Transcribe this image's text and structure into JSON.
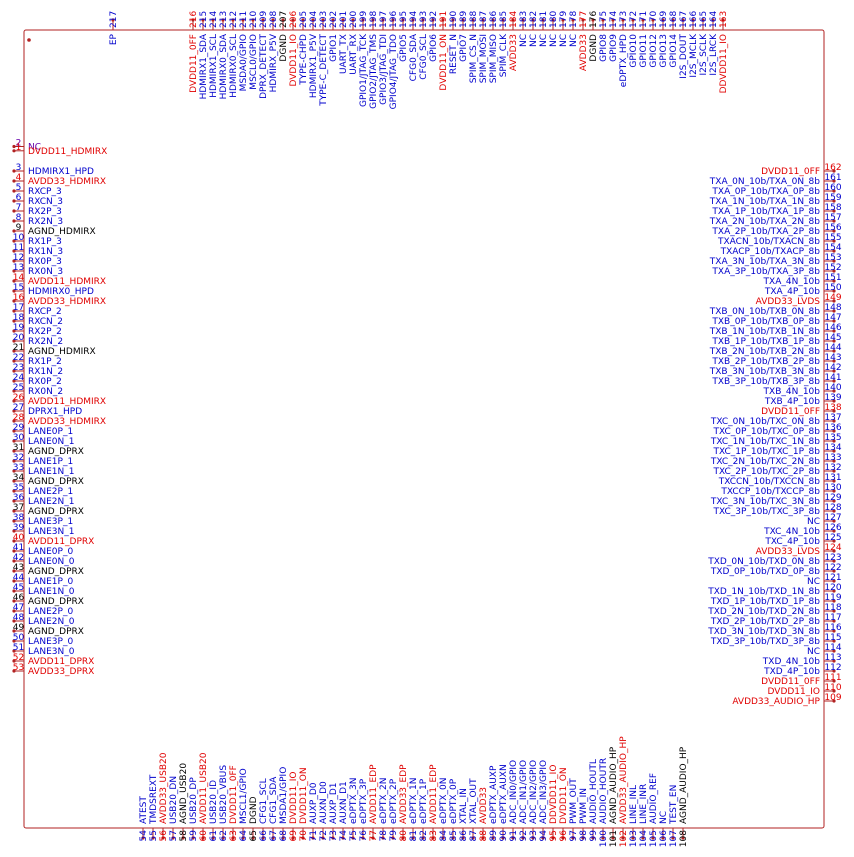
{
  "colors": {
    "outline": "#b22222",
    "signal": "#0000cc",
    "power": "#e00000",
    "ground": "#000000",
    "nc": "#6600aa"
  },
  "component": {
    "extra_pin": {
      "num": "217",
      "name": "EP"
    }
  },
  "left_pins": [
    {
      "num": "2",
      "name": "NC",
      "k": "nc"
    },
    {
      "num": "1",
      "name": "DVDD11_HDMIRX",
      "k": "power"
    },
    {
      "num": "3",
      "name": "HDMIRX1_HPD",
      "k": "signal"
    },
    {
      "num": "4",
      "name": "AVDD33_HDMIRX",
      "k": "power"
    },
    {
      "num": "5",
      "name": "RXCP_3",
      "k": "signal"
    },
    {
      "num": "6",
      "name": "RXCN_3",
      "k": "signal"
    },
    {
      "num": "7",
      "name": "RX2P_3",
      "k": "signal"
    },
    {
      "num": "8",
      "name": "RX2N_3",
      "k": "signal"
    },
    {
      "num": "9",
      "name": "AGND_HDMIRX",
      "k": "ground"
    },
    {
      "num": "10",
      "name": "RX1P_3",
      "k": "signal"
    },
    {
      "num": "11",
      "name": "RX1N_3",
      "k": "signal"
    },
    {
      "num": "12",
      "name": "RX0P_3",
      "k": "signal"
    },
    {
      "num": "13",
      "name": "RX0N_3",
      "k": "signal"
    },
    {
      "num": "14",
      "name": "AVDD11_HDMIRX",
      "k": "power"
    },
    {
      "num": "15",
      "name": "HDMIRX0_HPD",
      "k": "signal"
    },
    {
      "num": "16",
      "name": "AVDD33_HDMIRX",
      "k": "power"
    },
    {
      "num": "17",
      "name": "RXCP_2",
      "k": "signal"
    },
    {
      "num": "18",
      "name": "RXCN_2",
      "k": "signal"
    },
    {
      "num": "19",
      "name": "RX2P_2",
      "k": "signal"
    },
    {
      "num": "20",
      "name": "RX2N_2",
      "k": "signal"
    },
    {
      "num": "21",
      "name": "AGND_HDMIRX",
      "k": "ground"
    },
    {
      "num": "22",
      "name": "RX1P_2",
      "k": "signal"
    },
    {
      "num": "23",
      "name": "RX1N_2",
      "k": "signal"
    },
    {
      "num": "24",
      "name": "RX0P_2",
      "k": "signal"
    },
    {
      "num": "25",
      "name": "RX0N_2",
      "k": "signal"
    },
    {
      "num": "26",
      "name": "AVDD11_HDMIRX",
      "k": "power"
    },
    {
      "num": "27",
      "name": "DPRX1_HPD",
      "k": "signal"
    },
    {
      "num": "28",
      "name": "AVDD33_HDMIRX",
      "k": "power"
    },
    {
      "num": "29",
      "name": "LANE0P_1",
      "k": "signal"
    },
    {
      "num": "30",
      "name": "LANE0N_1",
      "k": "signal"
    },
    {
      "num": "31",
      "name": "AGND_DPRX",
      "k": "ground"
    },
    {
      "num": "32",
      "name": "LANE1P_1",
      "k": "signal"
    },
    {
      "num": "33",
      "name": "LANE1N_1",
      "k": "signal"
    },
    {
      "num": "34",
      "name": "AGND_DPRX",
      "k": "ground"
    },
    {
      "num": "35",
      "name": "LANE2P_1",
      "k": "signal"
    },
    {
      "num": "36",
      "name": "LANE2N_1",
      "k": "signal"
    },
    {
      "num": "37",
      "name": "AGND_DPRX",
      "k": "ground"
    },
    {
      "num": "38",
      "name": "LANE3P_1",
      "k": "signal"
    },
    {
      "num": "39",
      "name": "LANE3N_1",
      "k": "signal"
    },
    {
      "num": "40",
      "name": "AVDD11_DPRX",
      "k": "power"
    },
    {
      "num": "41",
      "name": "LANE0P_0",
      "k": "signal"
    },
    {
      "num": "42",
      "name": "LANE0N_0",
      "k": "signal"
    },
    {
      "num": "43",
      "name": "AGND_DPRX",
      "k": "ground"
    },
    {
      "num": "44",
      "name": "LANE1P_0",
      "k": "signal"
    },
    {
      "num": "45",
      "name": "LANE1N_0",
      "k": "signal"
    },
    {
      "num": "46",
      "name": "AGND_DPRX",
      "k": "ground"
    },
    {
      "num": "47",
      "name": "LANE2P_0",
      "k": "signal"
    },
    {
      "num": "48",
      "name": "LANE2N_0",
      "k": "signal"
    },
    {
      "num": "49",
      "name": "AGND_DPRX",
      "k": "ground"
    },
    {
      "num": "50",
      "name": "LANE3P_0",
      "k": "signal"
    },
    {
      "num": "51",
      "name": "LANE3N_0",
      "k": "signal"
    },
    {
      "num": "52",
      "name": "AVDD11_DPRX",
      "k": "power"
    },
    {
      "num": "53",
      "name": "AVDD33_DPRX",
      "k": "power"
    }
  ],
  "right_pins": [
    {
      "num": "162",
      "name": "DVDD11_0FF",
      "k": "power"
    },
    {
      "num": "161",
      "name": "TXA_0N_10b/TXA_0N_8b",
      "k": "signal"
    },
    {
      "num": "160",
      "name": "TXA_0P_10b/TXA_0P_8b",
      "k": "signal"
    },
    {
      "num": "159",
      "name": "TXA_1N_10b/TXA_1N_8b",
      "k": "signal"
    },
    {
      "num": "158",
      "name": "TXA_1P_10b/TXA_1P_8b",
      "k": "signal"
    },
    {
      "num": "157",
      "name": "TXA_2N_10b/TXA_2N_8b",
      "k": "signal"
    },
    {
      "num": "156",
      "name": "TXA_2P_10b/TXA_2P_8b",
      "k": "signal"
    },
    {
      "num": "155",
      "name": "TXACN_10b/TXACN_8b",
      "k": "signal"
    },
    {
      "num": "154",
      "name": "TXACP_10b/TXACP_8b",
      "k": "signal"
    },
    {
      "num": "153",
      "name": "TXA_3N_10b/TXA_3N_8b",
      "k": "signal"
    },
    {
      "num": "152",
      "name": "TXA_3P_10b/TXA_3P_8b",
      "k": "signal"
    },
    {
      "num": "151",
      "name": "TXA_4N_10b",
      "k": "signal"
    },
    {
      "num": "150",
      "name": "TXA_4P_10b",
      "k": "signal"
    },
    {
      "num": "149",
      "name": "AVDD33_LVDS",
      "k": "power"
    },
    {
      "num": "148",
      "name": "TXB_0N_10b/TXB_0N_8b",
      "k": "signal"
    },
    {
      "num": "147",
      "name": "TXB_0P_10b/TXB_0P_8b",
      "k": "signal"
    },
    {
      "num": "146",
      "name": "TXB_1N_10b/TXB_1N_8b",
      "k": "signal"
    },
    {
      "num": "145",
      "name": "TXB_1P_10b/TXB_1P_8b",
      "k": "signal"
    },
    {
      "num": "144",
      "name": "TXB_2N_10b/TXB_2N_8b",
      "k": "signal"
    },
    {
      "num": "143",
      "name": "TXB_2P_10b/TXB_2P_8b",
      "k": "signal"
    },
    {
      "num": "142",
      "name": "TXB_3N_10b/TXB_3N_8b",
      "k": "signal"
    },
    {
      "num": "141",
      "name": "TXB_3P_10b/TXB_3P_8b",
      "k": "signal"
    },
    {
      "num": "140",
      "name": "TXB_4N_10b",
      "k": "signal"
    },
    {
      "num": "139",
      "name": "TXB_4P_10b",
      "k": "signal"
    },
    {
      "num": "138",
      "name": "DVDD11_0FF",
      "k": "power"
    },
    {
      "num": "137",
      "name": "TXC_0N_10b/TXC_0N_8b",
      "k": "signal"
    },
    {
      "num": "136",
      "name": "TXC_0P_10b/TXC_0P_8b",
      "k": "signal"
    },
    {
      "num": "135",
      "name": "TXC_1N_10b/TXC_1N_8b",
      "k": "signal"
    },
    {
      "num": "134",
      "name": "TXC_1P_10b/TXC_1P_8b",
      "k": "signal"
    },
    {
      "num": "133",
      "name": "TXC_2N_10b/TXC_2N_8b",
      "k": "signal"
    },
    {
      "num": "132",
      "name": "TXC_2P_10b/TXC_2P_8b",
      "k": "signal"
    },
    {
      "num": "131",
      "name": "TXCCN_10b/TXCCN_8b",
      "k": "signal"
    },
    {
      "num": "130",
      "name": "TXCCP_10b/TXCCP_8b",
      "k": "signal"
    },
    {
      "num": "129",
      "name": "TXC_3N_10b/TXC_3N_8b",
      "k": "signal"
    },
    {
      "num": "128",
      "name": "TXC_3P_10b/TXC_3P_8b",
      "k": "signal"
    },
    {
      "num": "127",
      "name": "NC",
      "k": "signal"
    },
    {
      "num": "126",
      "name": "TXC_4N_10b",
      "k": "signal"
    },
    {
      "num": "125",
      "name": "TXC_4P_10b",
      "k": "signal"
    },
    {
      "num": "124",
      "name": "AVDD33_LVDS",
      "k": "power"
    },
    {
      "num": "123",
      "name": "TXD_0N_10b/TXD_0N_8b",
      "k": "signal"
    },
    {
      "num": "122",
      "name": "TXD_0P_10b/TXD_0P_8b",
      "k": "signal"
    },
    {
      "num": "121",
      "name": "NC",
      "k": "signal"
    },
    {
      "num": "120",
      "name": "TXD_1N_10b/TXD_1N_8b",
      "k": "signal"
    },
    {
      "num": "119",
      "name": "TXD_1P_10b/TXD_1P_8b",
      "k": "signal"
    },
    {
      "num": "118",
      "name": "TXD_2N_10b/TXD_2N_8b",
      "k": "signal"
    },
    {
      "num": "117",
      "name": "TXD_2P_10b/TXD_2P_8b",
      "k": "signal"
    },
    {
      "num": "116",
      "name": "TXD_3N_10b/TXD_3N_8b",
      "k": "signal"
    },
    {
      "num": "115",
      "name": "TXD_3P_10b/TXD_3P_8b",
      "k": "signal"
    },
    {
      "num": "114",
      "name": "NC",
      "k": "signal"
    },
    {
      "num": "113",
      "name": "TXD_4N_10b",
      "k": "signal"
    },
    {
      "num": "112",
      "name": "TXD_4P_10b",
      "k": "signal"
    },
    {
      "num": "111",
      "name": "DVDD11_0FF",
      "k": "power"
    },
    {
      "num": "110",
      "name": "DVDD11_IO",
      "k": "power"
    },
    {
      "num": "109",
      "name": "AVDD33_AUDIO_HP",
      "k": "power"
    }
  ],
  "top_pins": [
    {
      "num": "216",
      "name": "DVDD11_0FF",
      "k": "power"
    },
    {
      "num": "215",
      "name": "HDMIRX1_SDA",
      "k": "signal"
    },
    {
      "num": "214",
      "name": "HDMIRX1_SCL",
      "k": "signal"
    },
    {
      "num": "213",
      "name": "HDMIRX0_SDA",
      "k": "signal"
    },
    {
      "num": "212",
      "name": "HDMIRX0_SCL",
      "k": "signal"
    },
    {
      "num": "211",
      "name": "MSDA0/GPIO",
      "k": "signal"
    },
    {
      "num": "210",
      "name": "MSCL0/GPIO",
      "k": "signal"
    },
    {
      "num": "209",
      "name": "DPRX_DETECT",
      "k": "signal"
    },
    {
      "num": "208",
      "name": "HDMIRX_P5V",
      "k": "signal"
    },
    {
      "num": "207",
      "name": "DGND",
      "k": "ground"
    },
    {
      "num": "206",
      "name": "DVDD11_IO",
      "k": "power"
    },
    {
      "num": "205",
      "name": "TYPE-CHPD",
      "k": "signal"
    },
    {
      "num": "204",
      "name": "HDMIRX1_P5V",
      "k": "signal"
    },
    {
      "num": "203",
      "name": "TYPE-C_DETECT",
      "k": "signal"
    },
    {
      "num": "202",
      "name": "GPIO1",
      "k": "signal"
    },
    {
      "num": "201",
      "name": "UART_TX",
      "k": "signal"
    },
    {
      "num": "200",
      "name": "UART_RX",
      "k": "signal"
    },
    {
      "num": "199",
      "name": "GPIO1/JTAG_TCK",
      "k": "signal"
    },
    {
      "num": "198",
      "name": "GPIO2/JTAG_TMS",
      "k": "signal"
    },
    {
      "num": "197",
      "name": "GPIO3/JTAG_TDI",
      "k": "signal"
    },
    {
      "num": "196",
      "name": "GPIO4/JTAG_TDO",
      "k": "signal"
    },
    {
      "num": "195",
      "name": "GPIO5",
      "k": "signal"
    },
    {
      "num": "194",
      "name": "CFG0_SDA",
      "k": "signal"
    },
    {
      "num": "193",
      "name": "CFG0_SCL",
      "k": "signal"
    },
    {
      "num": "192",
      "name": "GPIO6",
      "k": "signal"
    },
    {
      "num": "191",
      "name": "DVDD11_ON",
      "k": "power"
    },
    {
      "num": "190",
      "name": "RESET_N",
      "k": "signal"
    },
    {
      "num": "189",
      "name": "GPIO7",
      "k": "signal"
    },
    {
      "num": "188",
      "name": "SPIM_CS_N",
      "k": "signal"
    },
    {
      "num": "187",
      "name": "SPIM_MOSI",
      "k": "signal"
    },
    {
      "num": "186",
      "name": "SPIM_MISO",
      "k": "signal"
    },
    {
      "num": "185",
      "name": "SPIM_CLK",
      "k": "signal"
    },
    {
      "num": "184",
      "name": "AVDD33",
      "k": "power"
    },
    {
      "num": "183",
      "name": "NC",
      "k": "signal"
    },
    {
      "num": "182",
      "name": "NC",
      "k": "signal"
    },
    {
      "num": "181",
      "name": "NC",
      "k": "signal"
    },
    {
      "num": "180",
      "name": "NC",
      "k": "signal"
    },
    {
      "num": "179",
      "name": "NC",
      "k": "signal"
    },
    {
      "num": "178",
      "name": "NC",
      "k": "signal"
    },
    {
      "num": "177",
      "name": "AVDD33",
      "k": "power"
    },
    {
      "num": "176",
      "name": "DGND",
      "k": "ground"
    },
    {
      "num": "175",
      "name": "GPIO8",
      "k": "signal"
    },
    {
      "num": "174",
      "name": "GPIO9",
      "k": "signal"
    },
    {
      "num": "173",
      "name": "eDPTX_HPD",
      "k": "signal"
    },
    {
      "num": "172",
      "name": "GPIO10",
      "k": "signal"
    },
    {
      "num": "171",
      "name": "GPIO11",
      "k": "signal"
    },
    {
      "num": "170",
      "name": "GPIO12",
      "k": "signal"
    },
    {
      "num": "169",
      "name": "GPIO13",
      "k": "signal"
    },
    {
      "num": "168",
      "name": "GPIO14",
      "k": "signal"
    },
    {
      "num": "167",
      "name": "I2S_DOUT",
      "k": "signal"
    },
    {
      "num": "166",
      "name": "I2S_MCLK",
      "k": "signal"
    },
    {
      "num": "165",
      "name": "I2S_SCLK",
      "k": "signal"
    },
    {
      "num": "164",
      "name": "I2S_LRCK",
      "k": "signal"
    },
    {
      "num": "163",
      "name": "DDVDD11_IO",
      "k": "power"
    }
  ],
  "bottom_pins": [
    {
      "num": "54",
      "name": "ATEST",
      "k": "signal"
    },
    {
      "num": "55",
      "name": "TMDSREXT",
      "k": "signal"
    },
    {
      "num": "56",
      "name": "AVDD33_USB20",
      "k": "power"
    },
    {
      "num": "57",
      "name": "USB20_DN",
      "k": "signal"
    },
    {
      "num": "58",
      "name": "AGND_USB20",
      "k": "ground"
    },
    {
      "num": "59",
      "name": "USB20_DP",
      "k": "signal"
    },
    {
      "num": "60",
      "name": "AVDD11_USB20",
      "k": "power"
    },
    {
      "num": "61",
      "name": "USB20_ID",
      "k": "signal"
    },
    {
      "num": "62",
      "name": "USB20_VBUS",
      "k": "signal"
    },
    {
      "num": "63",
      "name": "DVDD11_0FF",
      "k": "power"
    },
    {
      "num": "64",
      "name": "MSCL1/GPIO",
      "k": "signal"
    },
    {
      "num": "65",
      "name": "DGND",
      "k": "ground"
    },
    {
      "num": "66",
      "name": "CFG1_SCL",
      "k": "signal"
    },
    {
      "num": "67",
      "name": "CFG1_SDA",
      "k": "signal"
    },
    {
      "num": "68",
      "name": "MSDA1/GPIO",
      "k": "signal"
    },
    {
      "num": "69",
      "name": "DVDD11_IO",
      "k": "power"
    },
    {
      "num": "70",
      "name": "DVDD11_ON",
      "k": "power"
    },
    {
      "num": "71",
      "name": "AUXP_D0",
      "k": "signal"
    },
    {
      "num": "72",
      "name": "AUXN_D0",
      "k": "signal"
    },
    {
      "num": "73",
      "name": "AUXP_D1",
      "k": "signal"
    },
    {
      "num": "74",
      "name": "AUXN_D1",
      "k": "signal"
    },
    {
      "num": "75",
      "name": "eDPTX_3N",
      "k": "signal"
    },
    {
      "num": "76",
      "name": "eDPTX_3P",
      "k": "signal"
    },
    {
      "num": "77",
      "name": "AVDD11_EDP",
      "k": "power"
    },
    {
      "num": "78",
      "name": "eDPTX_2N",
      "k": "signal"
    },
    {
      "num": "79",
      "name": "eDPTX_2P",
      "k": "signal"
    },
    {
      "num": "80",
      "name": "AVDD33_EDP",
      "k": "power"
    },
    {
      "num": "81",
      "name": "eDPTX_1N",
      "k": "signal"
    },
    {
      "num": "82",
      "name": "eDPTX_1P",
      "k": "signal"
    },
    {
      "num": "83",
      "name": "AVDD11_EDP",
      "k": "power"
    },
    {
      "num": "84",
      "name": "eDPTX_0N",
      "k": "signal"
    },
    {
      "num": "85",
      "name": "eDPTX_0P",
      "k": "signal"
    },
    {
      "num": "86",
      "name": "XTAL_IN",
      "k": "signal"
    },
    {
      "num": "87",
      "name": "XTAL_OUT",
      "k": "signal"
    },
    {
      "num": "88",
      "name": "AVDD33",
      "k": "power"
    },
    {
      "num": "89",
      "name": "eDPTX_AUXP",
      "k": "signal"
    },
    {
      "num": "90",
      "name": "eDPTX_AUXN",
      "k": "signal"
    },
    {
      "num": "91",
      "name": "ADC_IN0/GPIO",
      "k": "signal"
    },
    {
      "num": "92",
      "name": "ADC_IN1/GPIO",
      "k": "signal"
    },
    {
      "num": "93",
      "name": "ADC_IN2/GPIO",
      "k": "signal"
    },
    {
      "num": "94",
      "name": "ADC_IN3/GPIO",
      "k": "signal"
    },
    {
      "num": "95",
      "name": "DDVDD11_IO",
      "k": "power"
    },
    {
      "num": "96",
      "name": "DVDD11_ON",
      "k": "power"
    },
    {
      "num": "97",
      "name": "PWM_OUT",
      "k": "signal"
    },
    {
      "num": "98",
      "name": "PWM_IN",
      "k": "signal"
    },
    {
      "num": "99",
      "name": "AUDIO_HOUTL",
      "k": "signal"
    },
    {
      "num": "100",
      "name": "AUDIO_HOUTR",
      "k": "signal"
    },
    {
      "num": "101",
      "name": "AGND_AUDIO_HP",
      "k": "ground"
    },
    {
      "num": "102",
      "name": "AVDD33_AUDIO_HP",
      "k": "power"
    },
    {
      "num": "103",
      "name": "LINE_INL",
      "k": "signal"
    },
    {
      "num": "104",
      "name": "LINE_INR",
      "k": "signal"
    },
    {
      "num": "105",
      "name": "AUDIO_REF",
      "k": "signal"
    },
    {
      "num": "106",
      "name": "NC",
      "k": "signal"
    },
    {
      "num": "107",
      "name": "TEST_EN",
      "k": "signal"
    },
    {
      "num": "108",
      "name": "AGND_AUDIO_HP",
      "k": "ground"
    }
  ]
}
